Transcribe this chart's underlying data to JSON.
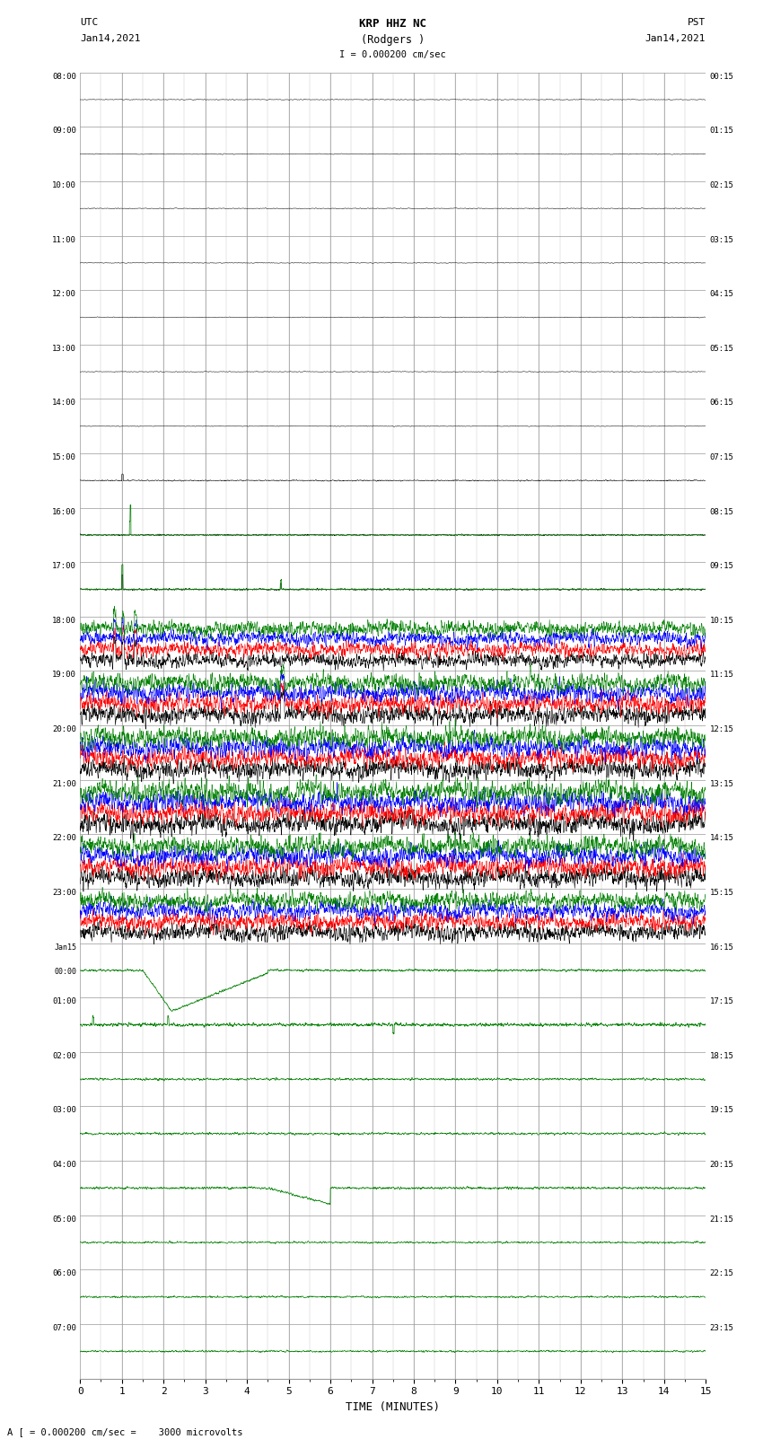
{
  "title_line1": "KRP HHZ NC",
  "title_line2": "(Rodgers )",
  "scale_text": "I = 0.000200 cm/sec",
  "bottom_scale_text": "A [ = 0.000200 cm/sec =    3000 microvolts",
  "xlabel": "TIME (MINUTES)",
  "left_label_top": "UTC",
  "left_label_date": "Jan14,2021",
  "right_label_top": "PST",
  "right_label_date": "Jan14,2021",
  "x_min": 0,
  "x_max": 15,
  "x_ticks": [
    0,
    1,
    2,
    3,
    4,
    5,
    6,
    7,
    8,
    9,
    10,
    11,
    12,
    13,
    14,
    15
  ],
  "left_times": [
    "08:00",
    "09:00",
    "10:00",
    "11:00",
    "12:00",
    "13:00",
    "14:00",
    "15:00",
    "16:00",
    "17:00",
    "18:00",
    "19:00",
    "20:00",
    "21:00",
    "22:00",
    "23:00",
    "Jan15\n00:00",
    "01:00",
    "02:00",
    "03:00",
    "04:00",
    "05:00",
    "06:00",
    "07:00"
  ],
  "right_times": [
    "00:15",
    "01:15",
    "02:15",
    "03:15",
    "04:15",
    "05:15",
    "06:15",
    "07:15",
    "08:15",
    "09:15",
    "10:15",
    "11:15",
    "12:15",
    "13:15",
    "14:15",
    "15:15",
    "16:15",
    "17:15",
    "18:15",
    "19:15",
    "20:15",
    "21:15",
    "22:15",
    "23:15"
  ],
  "n_rows": 24,
  "bg_color": "#ffffff",
  "grid_color": "#999999",
  "trace_colors": [
    "#000000",
    "#ff0000",
    "#0000ff",
    "#008000"
  ],
  "fig_width": 8.5,
  "fig_height": 16.13,
  "dpi": 100
}
